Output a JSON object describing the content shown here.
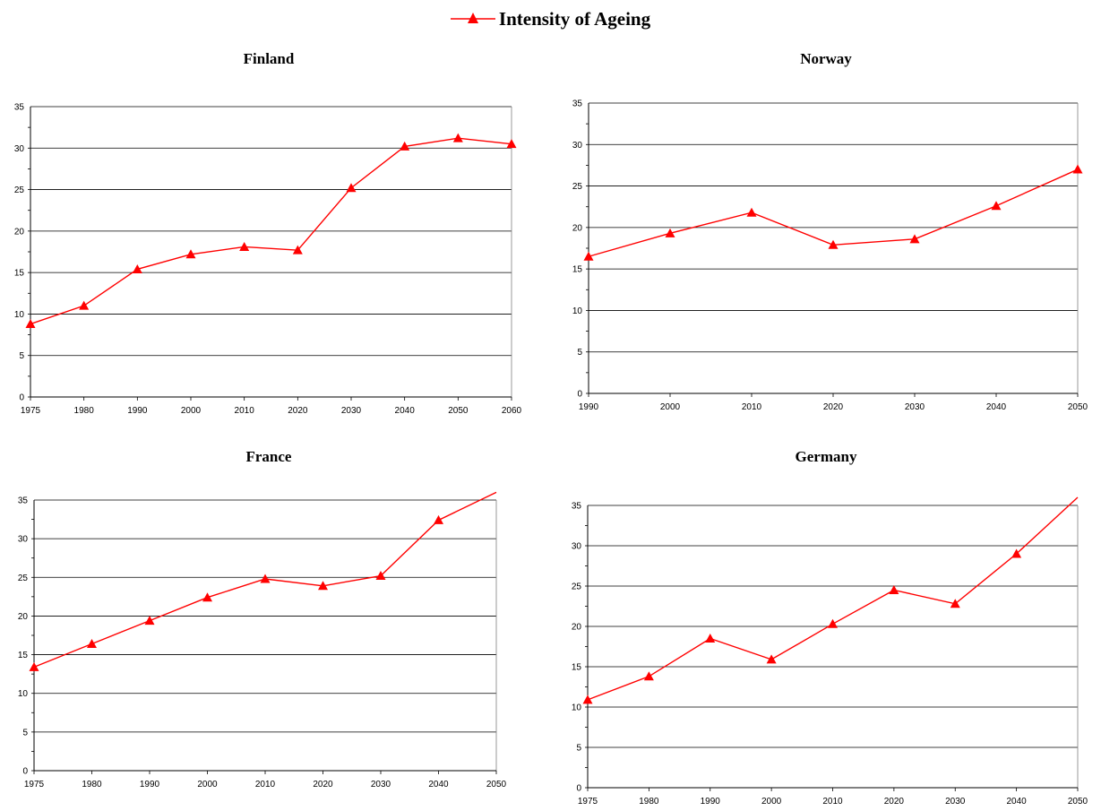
{
  "legend": {
    "label": "Intensity of Ageing",
    "color": "#ff0000"
  },
  "chart_data": [
    {
      "type": "line",
      "title": "Finland",
      "categories": [
        "1975",
        "1980",
        "1990",
        "2000",
        "2010",
        "2020",
        "2030",
        "2040",
        "2050",
        "2060"
      ],
      "series": [
        {
          "name": "Intensity of Ageing",
          "values": [
            8.8,
            11.0,
            15.4,
            17.2,
            18.1,
            17.7,
            25.2,
            30.2,
            31.2,
            30.5
          ]
        }
      ],
      "yticks": [
        "0",
        "5",
        "10",
        "15",
        "20",
        "25",
        "30",
        "35"
      ],
      "ylim": [
        0,
        35
      ],
      "grid": true,
      "legend": "top"
    },
    {
      "type": "line",
      "title": "Norway",
      "categories": [
        "1990",
        "2000",
        "2010",
        "2020",
        "2030",
        "2040",
        "2050"
      ],
      "series": [
        {
          "name": "Intensity of Ageing",
          "values": [
            16.5,
            19.3,
            21.8,
            17.9,
            18.6,
            22.6,
            27.0
          ]
        }
      ],
      "yticks": [
        "0",
        "5",
        "10",
        "15",
        "20",
        "25",
        "30",
        "35"
      ],
      "ylim": [
        0,
        35
      ],
      "grid": true,
      "legend": "top"
    },
    {
      "type": "line",
      "title": "France",
      "categories": [
        "1975",
        "1980",
        "1990",
        "2000",
        "2010",
        "2020",
        "2030",
        "2040",
        "2050"
      ],
      "series": [
        {
          "name": "Intensity of Ageing",
          "values": [
            13.4,
            16.4,
            19.4,
            22.4,
            24.8,
            23.9,
            25.2,
            32.4,
            36.0
          ]
        }
      ],
      "yticks": [
        "0",
        "5",
        "10",
        "15",
        "20",
        "25",
        "30",
        "35"
      ],
      "ylim": [
        0,
        35
      ],
      "grid": true,
      "legend": "top"
    },
    {
      "type": "line",
      "title": "Germany",
      "categories": [
        "1975",
        "1980",
        "1990",
        "2000",
        "2010",
        "2020",
        "2030",
        "2040",
        "2050"
      ],
      "series": [
        {
          "name": "Intensity of Ageing",
          "values": [
            10.9,
            13.8,
            18.5,
            15.9,
            20.3,
            24.5,
            22.8,
            29.0,
            36.0
          ]
        }
      ],
      "yticks": [
        "0",
        "5",
        "10",
        "15",
        "20",
        "25",
        "30",
        "35"
      ],
      "ylim": [
        0,
        35
      ],
      "grid": true,
      "legend": "top"
    }
  ]
}
